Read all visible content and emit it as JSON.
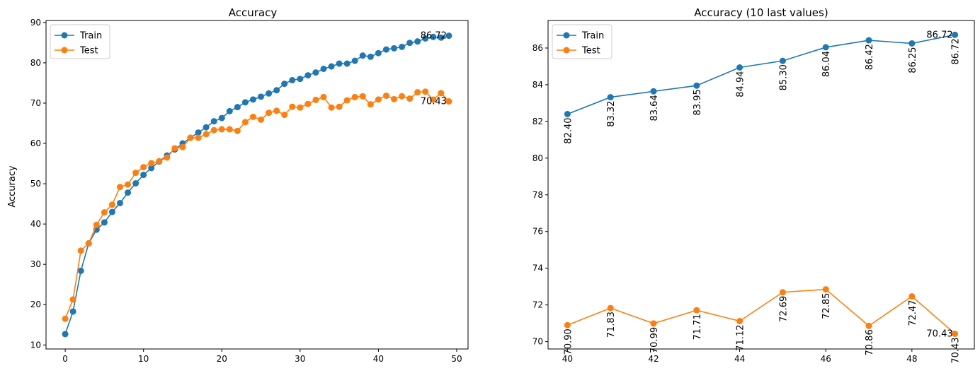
{
  "colors": {
    "train": "#1f77b4",
    "test": "#ff7f0e"
  },
  "chart_data": [
    {
      "type": "line",
      "title": "Accuracy",
      "xlabel": "",
      "ylabel": "Accuracy",
      "xlim": [
        -2.45,
        51.45
      ],
      "ylim": [
        9.0,
        90.5
      ],
      "xticks": [
        0,
        10,
        20,
        30,
        40,
        50
      ],
      "yticks": [
        10,
        20,
        30,
        40,
        50,
        60,
        70,
        80,
        90
      ],
      "grid": false,
      "legend": "upper left",
      "x": [
        0,
        1,
        2,
        3,
        4,
        5,
        6,
        7,
        8,
        9,
        10,
        11,
        12,
        13,
        14,
        15,
        16,
        17,
        18,
        19,
        20,
        21,
        22,
        23,
        24,
        25,
        26,
        27,
        28,
        29,
        30,
        31,
        32,
        33,
        34,
        35,
        36,
        37,
        38,
        39,
        40,
        41,
        42,
        43,
        44,
        45,
        46,
        47,
        48,
        49
      ],
      "series": [
        {
          "name": "Train",
          "color_key": "train",
          "values": [
            12.7,
            18.3,
            28.4,
            35.2,
            38.6,
            40.4,
            43.0,
            45.2,
            47.8,
            50.1,
            52.2,
            53.9,
            55.5,
            57.0,
            58.5,
            60.0,
            61.4,
            62.7,
            64.0,
            65.5,
            66.3,
            68.0,
            69.0,
            70.2,
            70.9,
            71.6,
            72.4,
            73.2,
            74.8,
            75.7,
            76.0,
            76.9,
            77.6,
            78.5,
            79.1,
            79.8,
            79.8,
            80.5,
            81.8,
            81.5,
            82.4,
            83.3,
            83.6,
            83.95,
            84.94,
            85.3,
            86.04,
            86.42,
            86.25,
            86.72
          ]
        },
        {
          "name": "Test",
          "color_key": "test",
          "values": [
            16.5,
            21.3,
            33.4,
            35.2,
            39.8,
            42.9,
            44.8,
            49.2,
            49.8,
            52.7,
            54.1,
            55.1,
            55.6,
            56.5,
            58.8,
            59.1,
            61.4,
            61.4,
            62.3,
            63.3,
            63.5,
            63.5,
            63.1,
            65.3,
            66.6,
            65.9,
            67.6,
            68.1,
            67.1,
            69.1,
            68.9,
            69.8,
            70.8,
            71.5,
            68.9,
            69.1,
            70.7,
            71.5,
            71.7,
            69.7,
            70.9,
            71.83,
            70.99,
            71.71,
            71.12,
            72.69,
            72.85,
            70.86,
            72.47,
            70.43
          ]
        }
      ],
      "annotations": [
        {
          "x": 49,
          "y": 86.72,
          "label": "86.72"
        },
        {
          "x": 49,
          "y": 70.43,
          "label": "70.43"
        }
      ]
    },
    {
      "type": "line",
      "title": "Accuracy (10 last values)",
      "xlabel": "",
      "ylabel": "",
      "xlim": [
        39.55,
        49.45
      ],
      "ylim": [
        69.6,
        87.5
      ],
      "xticks": [
        40,
        42,
        44,
        46,
        48
      ],
      "yticks": [
        70,
        72,
        74,
        76,
        78,
        80,
        82,
        84,
        86
      ],
      "grid": false,
      "legend": "upper left",
      "x": [
        40,
        41,
        42,
        43,
        44,
        45,
        46,
        47,
        48,
        49
      ],
      "series": [
        {
          "name": "Train",
          "color_key": "train",
          "values": [
            82.4,
            83.32,
            83.64,
            83.95,
            84.94,
            85.3,
            86.04,
            86.42,
            86.25,
            86.72
          ],
          "point_labels": [
            "82.40",
            "83.32",
            "83.64",
            "83.95",
            "84.94",
            "85.30",
            "86.04",
            "86.42",
            "86.25",
            "86.72"
          ]
        },
        {
          "name": "Test",
          "color_key": "test",
          "values": [
            70.9,
            71.83,
            70.99,
            71.71,
            71.12,
            72.69,
            72.85,
            70.86,
            72.47,
            70.43
          ],
          "point_labels": [
            "70.90",
            "71.83",
            "70.99",
            "71.71",
            "71.12",
            "72.69",
            "72.85",
            "70.86",
            "72.47",
            "70.43"
          ]
        }
      ],
      "annotations": [
        {
          "x": 49,
          "y": 86.72,
          "label": "86.72"
        },
        {
          "x": 49,
          "y": 70.43,
          "label": "70.43"
        }
      ]
    }
  ]
}
